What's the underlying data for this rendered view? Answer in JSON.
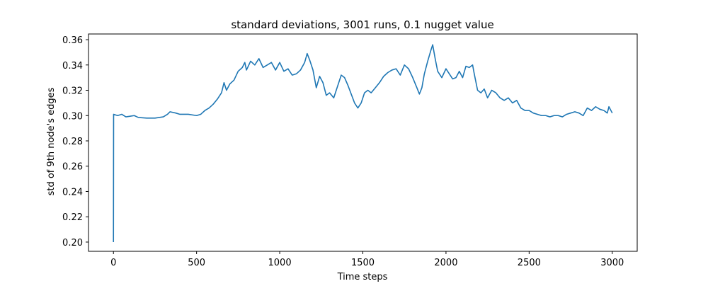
{
  "chart_data": {
    "type": "line",
    "title": "standard deviations, 3001 runs, 0.1 nugget value",
    "x_label": "Time steps",
    "y_label": "std of 9th node's edges",
    "xlim": [
      -150,
      3150
    ],
    "ylim": [
      0.1927,
      0.3645
    ],
    "xticks": [
      0,
      500,
      1000,
      1500,
      2000,
      2500,
      3000
    ],
    "yticks": [
      {
        "value": 0.2,
        "label": "0.20"
      },
      {
        "value": 0.22,
        "label": "0.22"
      },
      {
        "value": 0.24,
        "label": "0.24"
      },
      {
        "value": 0.26,
        "label": "0.26"
      },
      {
        "value": 0.28,
        "label": "0.28"
      },
      {
        "value": 0.3,
        "label": "0.30"
      },
      {
        "value": 0.32,
        "label": "0.32"
      },
      {
        "value": 0.34,
        "label": "0.34"
      },
      {
        "value": 0.36,
        "label": "0.36"
      }
    ],
    "grid": false,
    "series": [
      {
        "color": "#1f77b4",
        "x": [
          0,
          1,
          25,
          50,
          75,
          100,
          125,
          150,
          200,
          250,
          300,
          325,
          340,
          375,
          400,
          450,
          500,
          525,
          550,
          575,
          600,
          625,
          650,
          665,
          680,
          700,
          725,
          750,
          775,
          790,
          800,
          825,
          850,
          875,
          900,
          925,
          950,
          975,
          1000,
          1025,
          1050,
          1075,
          1100,
          1125,
          1150,
          1165,
          1180,
          1200,
          1220,
          1240,
          1260,
          1280,
          1300,
          1325,
          1350,
          1370,
          1390,
          1410,
          1430,
          1450,
          1470,
          1490,
          1510,
          1530,
          1550,
          1575,
          1600,
          1625,
          1650,
          1675,
          1700,
          1725,
          1750,
          1775,
          1800,
          1825,
          1840,
          1855,
          1870,
          1890,
          1910,
          1920,
          1935,
          1950,
          1975,
          2000,
          2020,
          2040,
          2060,
          2080,
          2100,
          2120,
          2140,
          2160,
          2170,
          2190,
          2210,
          2230,
          2250,
          2275,
          2300,
          2325,
          2350,
          2375,
          2400,
          2425,
          2450,
          2475,
          2500,
          2525,
          2550,
          2575,
          2600,
          2625,
          2650,
          2675,
          2700,
          2725,
          2750,
          2775,
          2800,
          2825,
          2850,
          2875,
          2900,
          2925,
          2950,
          2970,
          2980,
          3000
        ],
        "values": [
          0.2,
          0.301,
          0.3,
          0.301,
          0.299,
          0.2995,
          0.3,
          0.2985,
          0.298,
          0.298,
          0.299,
          0.301,
          0.303,
          0.302,
          0.301,
          0.301,
          0.3,
          0.301,
          0.304,
          0.306,
          0.309,
          0.313,
          0.318,
          0.326,
          0.32,
          0.325,
          0.328,
          0.335,
          0.338,
          0.342,
          0.336,
          0.343,
          0.34,
          0.345,
          0.338,
          0.34,
          0.342,
          0.336,
          0.342,
          0.335,
          0.337,
          0.332,
          0.333,
          0.336,
          0.342,
          0.349,
          0.344,
          0.336,
          0.322,
          0.331,
          0.326,
          0.316,
          0.318,
          0.314,
          0.324,
          0.332,
          0.33,
          0.324,
          0.317,
          0.31,
          0.306,
          0.31,
          0.318,
          0.32,
          0.318,
          0.322,
          0.326,
          0.331,
          0.334,
          0.336,
          0.337,
          0.332,
          0.34,
          0.337,
          0.33,
          0.322,
          0.317,
          0.322,
          0.333,
          0.343,
          0.352,
          0.356,
          0.345,
          0.335,
          0.33,
          0.337,
          0.333,
          0.329,
          0.33,
          0.335,
          0.33,
          0.339,
          0.338,
          0.34,
          0.333,
          0.32,
          0.318,
          0.321,
          0.314,
          0.32,
          0.318,
          0.314,
          0.312,
          0.314,
          0.31,
          0.312,
          0.306,
          0.304,
          0.304,
          0.302,
          0.301,
          0.3,
          0.3,
          0.299,
          0.3,
          0.3,
          0.299,
          0.301,
          0.302,
          0.303,
          0.302,
          0.3,
          0.306,
          0.304,
          0.307,
          0.305,
          0.304,
          0.302,
          0.307,
          0.302
        ]
      }
    ]
  }
}
